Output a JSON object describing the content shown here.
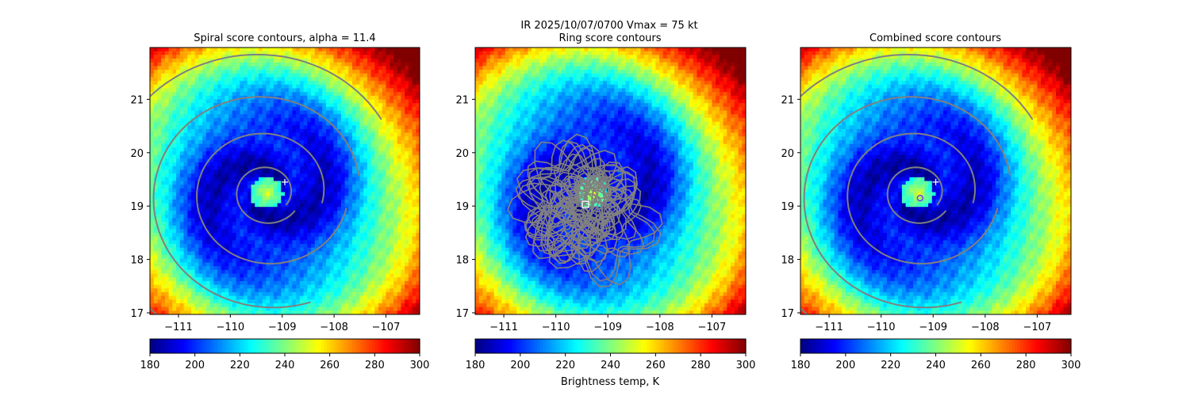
{
  "figure": {
    "suptitle_line1": "IR  2025/10/07/0700    Vmax = 75 kt",
    "colorbar_label": "Brightness temp, K"
  },
  "chart_data": [
    {
      "type": "heatmap",
      "title": "Spiral score contours, alpha = 11.4",
      "xlim": [
        -111.55,
        -106.35
      ],
      "ylim": [
        16.97,
        21.97
      ],
      "xticks": [
        -111,
        -110,
        -109,
        -108,
        -107
      ],
      "yticks": [
        17,
        18,
        19,
        20,
        21
      ],
      "xtick_labels": [
        "−111",
        "−110",
        "−109",
        "−108",
        "−107"
      ],
      "ytick_labels": [
        "17",
        "18",
        "19",
        "20",
        "21"
      ],
      "field": {
        "center": [
          -109.3,
          19.25
        ],
        "eye_radius_deg": 0.3,
        "colormap": "jet",
        "vmin": 180,
        "vmax": 300
      },
      "contour_color": "#808080",
      "contour_style": "spiral",
      "marker": {
        "type": "plus",
        "x": -108.95,
        "y": 19.45,
        "color": "#ffffff"
      },
      "colorbar": {
        "ticks": [
          180,
          200,
          220,
          240,
          260,
          280,
          300
        ],
        "tick_labels": [
          "180",
          "200",
          "220",
          "240",
          "260",
          "280",
          "300"
        ]
      }
    },
    {
      "type": "heatmap",
      "title": "Ring score contours",
      "xlim": [
        -111.55,
        -106.35
      ],
      "ylim": [
        16.97,
        21.97
      ],
      "xticks": [
        -111,
        -110,
        -109,
        -108,
        -107
      ],
      "yticks": [
        17,
        18,
        19,
        20,
        21
      ],
      "xtick_labels": [
        "−111",
        "−110",
        "−109",
        "−108",
        "−107"
      ],
      "ytick_labels": [
        "17",
        "18",
        "19",
        "20",
        "21"
      ],
      "field": {
        "center": [
          -109.3,
          19.25
        ],
        "eye_radius_deg": 0.3,
        "colormap": "jet",
        "vmin": 180,
        "vmax": 300
      },
      "contour_color": "#808080",
      "contour_style": "noisy",
      "marker": {
        "type": "square",
        "x": -109.43,
        "y": 19.03,
        "color": "#ffffff"
      },
      "colorbar": {
        "ticks": [
          180,
          200,
          220,
          240,
          260,
          280,
          300
        ],
        "tick_labels": [
          "180",
          "200",
          "220",
          "240",
          "260",
          "280",
          "300"
        ]
      }
    },
    {
      "type": "heatmap",
      "title": "Combined score contours",
      "xlim": [
        -111.55,
        -106.35
      ],
      "ylim": [
        16.97,
        21.97
      ],
      "xticks": [
        -111,
        -110,
        -109,
        -108,
        -107
      ],
      "yticks": [
        17,
        18,
        19,
        20,
        21
      ],
      "xtick_labels": [
        "−111",
        "−110",
        "−109",
        "−108",
        "−107"
      ],
      "ytick_labels": [
        "17",
        "18",
        "19",
        "20",
        "21"
      ],
      "field": {
        "center": [
          -109.3,
          19.25
        ],
        "eye_radius_deg": 0.3,
        "colormap": "jet",
        "vmin": 180,
        "vmax": 300
      },
      "contour_color": "#808080",
      "contour_style": "spiral",
      "marker": {
        "type": "plus",
        "x": -108.95,
        "y": 19.45,
        "color": "#ffffff"
      },
      "marker2": {
        "type": "circle",
        "x": -109.25,
        "y": 19.15,
        "color": "#7b3fe4"
      },
      "colorbar": {
        "ticks": [
          180,
          200,
          220,
          240,
          260,
          280,
          300
        ],
        "tick_labels": [
          "180",
          "200",
          "220",
          "240",
          "260",
          "280",
          "300"
        ]
      }
    }
  ]
}
